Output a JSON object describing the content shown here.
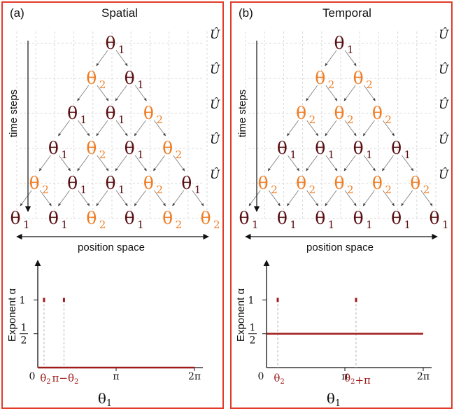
{
  "colors": {
    "theta1": "#5a0e12",
    "theta2": "#f07d24",
    "curve": "#a01c1c",
    "frame": "#e23b2a"
  },
  "theta_symbol": "θ",
  "operator_label": "Û",
  "panels": [
    {
      "tag": "(a)",
      "title": "Spatial",
      "time_label": "time steps",
      "position_label": "position space",
      "rows": [
        [
          "1"
        ],
        [
          "2",
          "1"
        ],
        [
          "1",
          "1",
          "2"
        ],
        [
          "1",
          "2",
          "1",
          "2"
        ],
        [
          "2",
          "1",
          "1",
          "2",
          "1"
        ],
        [
          "1",
          "1",
          "2",
          "1",
          "2",
          "2"
        ]
      ]
    },
    {
      "tag": "(b)",
      "title": "Temporal",
      "time_label": "time steps",
      "position_label": "position space",
      "rows": [
        [
          "1"
        ],
        [
          "2",
          "2"
        ],
        [
          "2",
          "2",
          "2"
        ],
        [
          "1",
          "1",
          "1",
          "1"
        ],
        [
          "2",
          "2",
          "2",
          "2",
          "2"
        ],
        [
          "1",
          "1",
          "1",
          "1",
          "1",
          "1"
        ]
      ]
    }
  ],
  "chart_data": [
    {
      "type": "line",
      "panel": "(a) Spatial",
      "xlabel": "θ1",
      "ylabel": "Exponent α",
      "xlim": [
        0,
        6.2832
      ],
      "ylim": [
        0,
        1.5
      ],
      "x_ticks": [
        "0",
        "π",
        "2π"
      ],
      "x_markers": [
        "θ2",
        "π−θ2"
      ],
      "y_ticks": [
        "1",
        "1/2"
      ],
      "series": [
        {
          "x": [
            0,
            6.2832
          ],
          "values": [
            0,
            0
          ]
        }
      ],
      "points": [
        {
          "x": 0.25,
          "y": 1
        },
        {
          "x": 1.05,
          "y": 1
        }
      ]
    },
    {
      "type": "line",
      "panel": "(b) Temporal",
      "xlabel": "θ1",
      "ylabel": "Exponent α",
      "xlim": [
        0,
        6.2832
      ],
      "ylim": [
        0,
        1.5
      ],
      "x_ticks": [
        "0",
        "π",
        "2π"
      ],
      "x_markers": [
        "θ2",
        "θ2+π"
      ],
      "y_ticks": [
        "1",
        "1/2"
      ],
      "series": [
        {
          "x": [
            0,
            6.2832
          ],
          "values": [
            0.5,
            0.5
          ]
        }
      ],
      "points": [
        {
          "x": 0.45,
          "y": 1
        },
        {
          "x": 3.59,
          "y": 1
        }
      ]
    }
  ]
}
